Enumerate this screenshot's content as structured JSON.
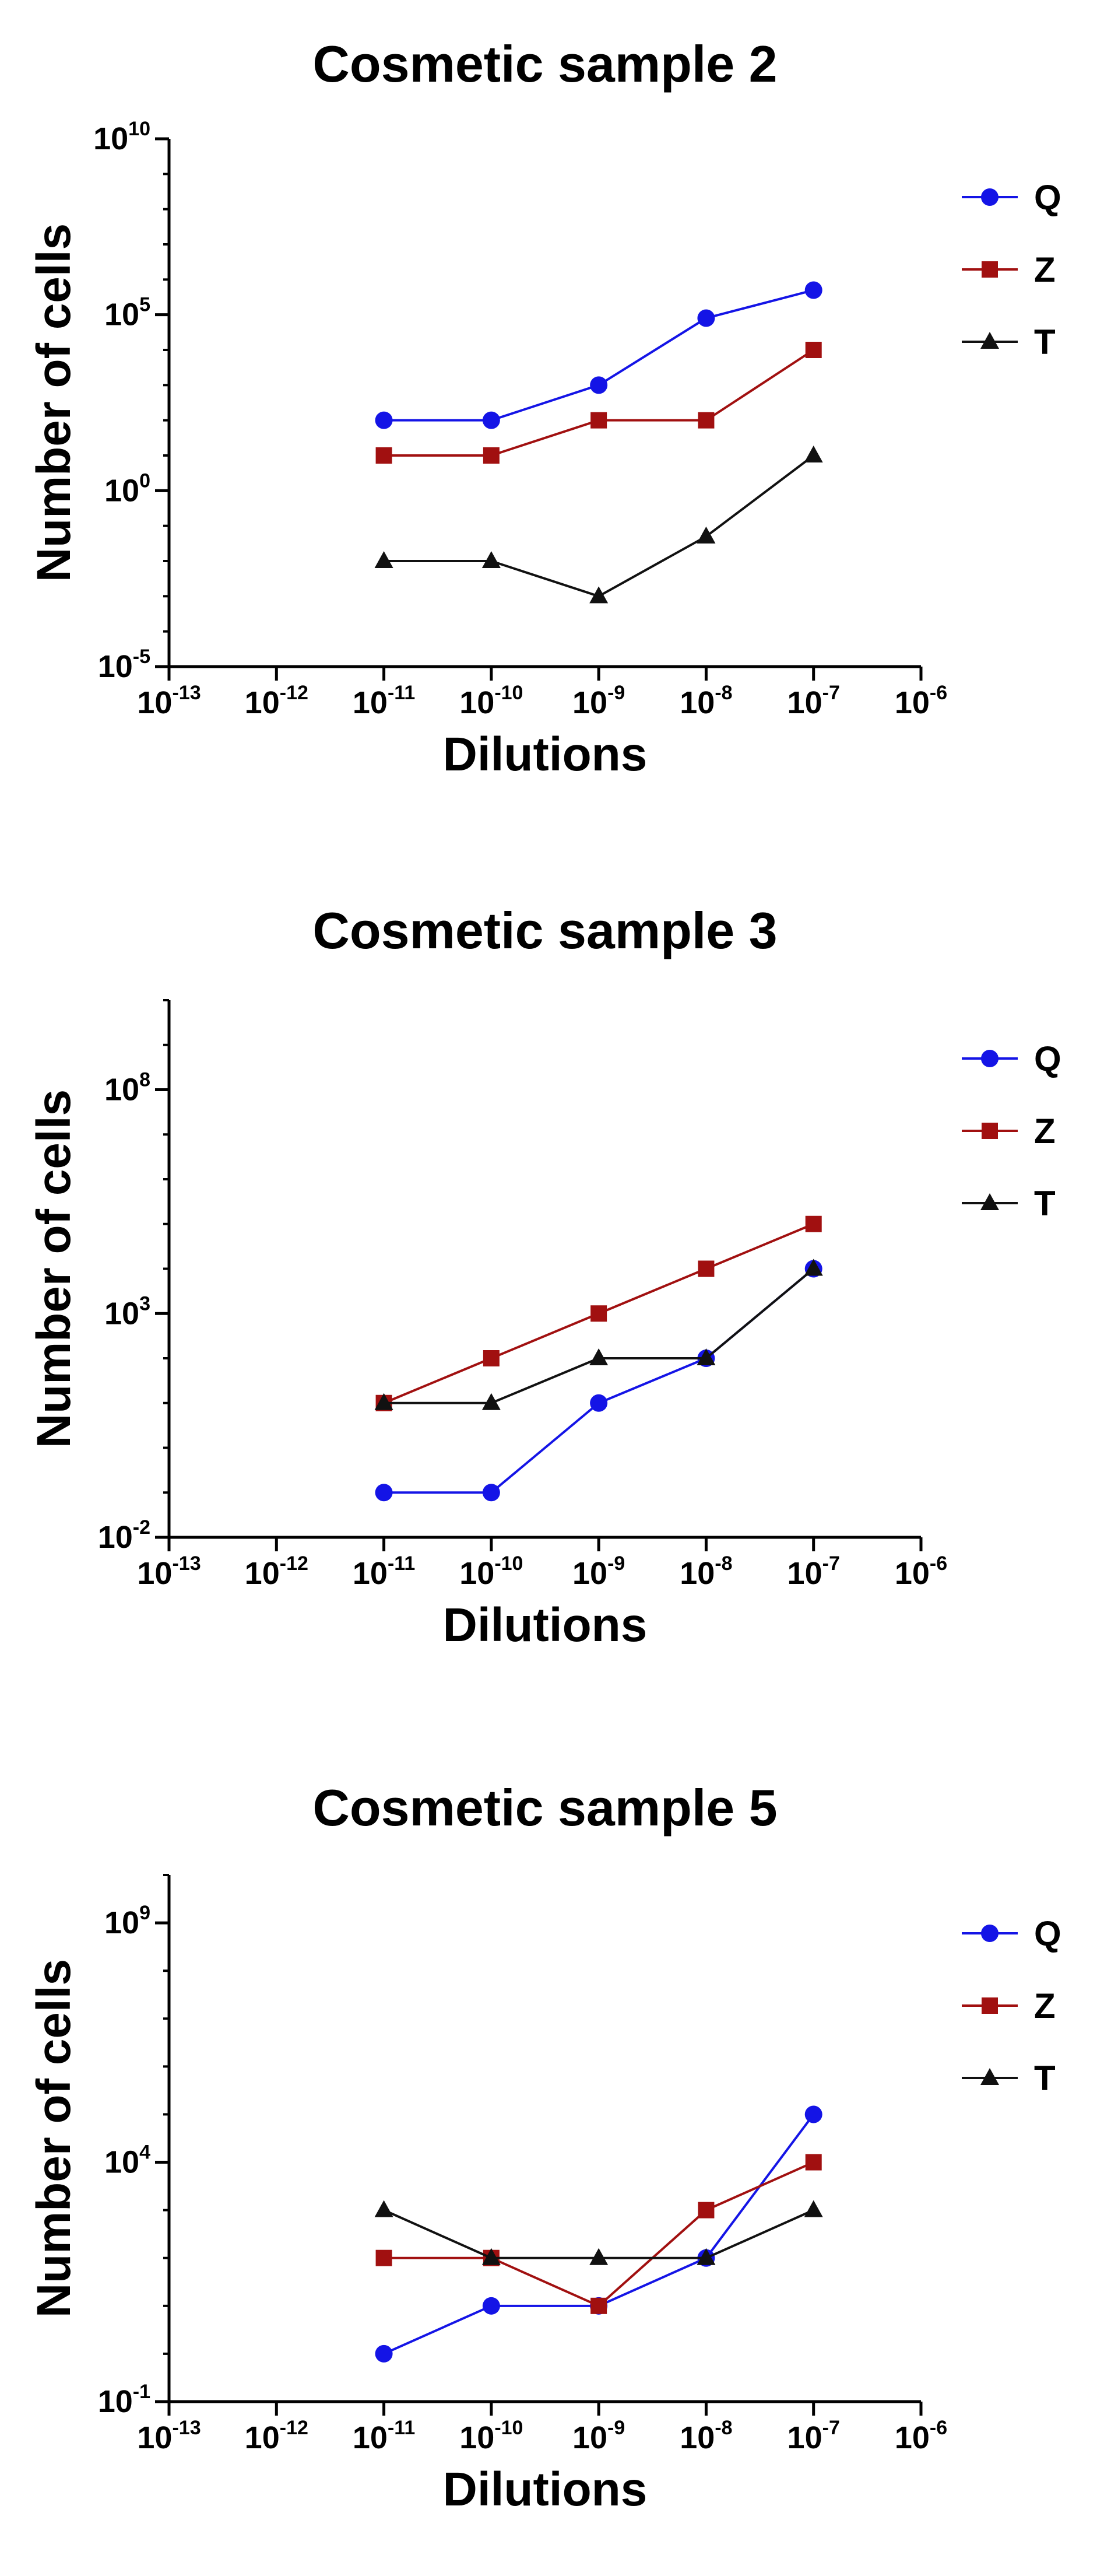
{
  "colors": {
    "Q": "#1414e6",
    "Z": "#a11010",
    "T": "#111111",
    "axis": "#000000"
  },
  "chart_data": [
    {
      "type": "line",
      "title": "Cosmetic sample 2",
      "xlabel": "Dilutions",
      "ylabel": "Number of cells",
      "xscale": "log",
      "yscale": "log",
      "xlim": [
        1e-13,
        1e-06
      ],
      "ylim": [
        1e-05,
        10000000000.0
      ],
      "x_tick_labels": [
        "10-13",
        "10-12",
        "10-11",
        "10-10",
        "10-9",
        "10-8",
        "10-7",
        "10-6"
      ],
      "y_tick_labels": [
        "10-5",
        "100",
        "105",
        "1010"
      ],
      "legend": "right",
      "x": [
        1e-11,
        1e-10,
        1e-09,
        1e-08,
        1e-07
      ],
      "series": [
        {
          "name": "Q",
          "marker": "circle",
          "values": [
            100,
            100,
            1000,
            80000,
            500000
          ]
        },
        {
          "name": "Z",
          "marker": "square",
          "values": [
            10,
            10,
            100,
            100,
            10000
          ]
        },
        {
          "name": "T",
          "marker": "triangle",
          "values": [
            0.01,
            0.01,
            0.001,
            0.05,
            10
          ]
        }
      ]
    },
    {
      "type": "line",
      "title": "Cosmetic sample 3",
      "xlabel": "Dilutions",
      "ylabel": "Number of cells",
      "xscale": "log",
      "yscale": "log",
      "xlim": [
        1e-13,
        1e-06
      ],
      "ylim": [
        0.01,
        10000000000.0
      ],
      "x_tick_labels": [
        "10-13",
        "10-12",
        "10-11",
        "10-10",
        "10-9",
        "10-8",
        "10-7",
        "10-6"
      ],
      "y_tick_labels": [
        "10-2",
        "103",
        "108"
      ],
      "legend": "right",
      "x": [
        1e-11,
        1e-10,
        1e-09,
        1e-08,
        1e-07
      ],
      "series": [
        {
          "name": "Q",
          "marker": "circle",
          "values": [
            0.1,
            0.1,
            10,
            100,
            10000
          ]
        },
        {
          "name": "Z",
          "marker": "square",
          "values": [
            10,
            100,
            1000,
            10000,
            100000
          ]
        },
        {
          "name": "T",
          "marker": "triangle",
          "values": [
            10,
            10,
            100,
            100,
            10000
          ]
        }
      ]
    },
    {
      "type": "line",
      "title": "Cosmetic sample 5",
      "xlabel": "Dilutions",
      "ylabel": "Number of cells",
      "xscale": "log",
      "yscale": "log",
      "xlim": [
        1e-13,
        1e-06
      ],
      "ylim": [
        0.1,
        10000000000.0
      ],
      "x_tick_labels": [
        "10-13",
        "10-12",
        "10-11",
        "10-10",
        "10-9",
        "10-8",
        "10-7",
        "10-6"
      ],
      "y_tick_labels": [
        "10-1",
        "104",
        "109"
      ],
      "legend": "right",
      "x": [
        1e-11,
        1e-10,
        1e-09,
        1e-08,
        1e-07
      ],
      "series": [
        {
          "name": "Q",
          "marker": "circle",
          "values": [
            1,
            10,
            10,
            100,
            100000
          ]
        },
        {
          "name": "Z",
          "marker": "square",
          "values": [
            100,
            100,
            10,
            1000,
            10000
          ]
        },
        {
          "name": "T",
          "marker": "triangle",
          "values": [
            1000,
            100,
            100,
            100,
            1000
          ]
        }
      ]
    }
  ]
}
